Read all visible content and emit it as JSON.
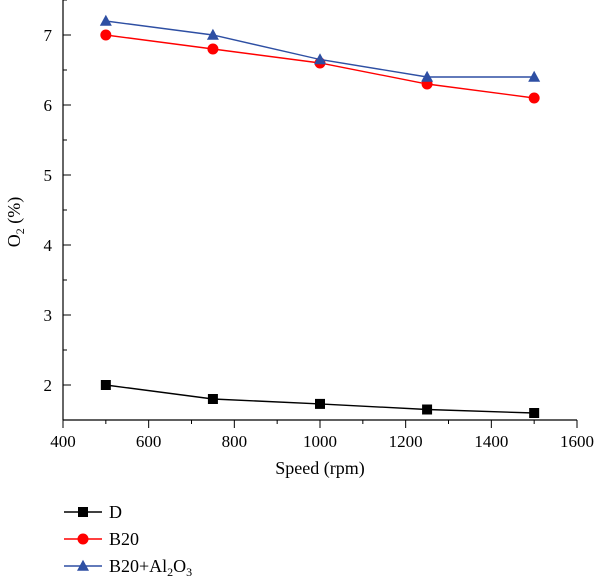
{
  "chart_data": {
    "type": "line",
    "title": "",
    "xlabel": "Speed (rpm)",
    "ylabel": {
      "main": "O",
      "sub": "2",
      "rest": " (%)"
    },
    "xlim": [
      400,
      1600
    ],
    "ylim": [
      1.5,
      7.5
    ],
    "xticks": [
      400,
      600,
      800,
      1000,
      1200,
      1400,
      1600
    ],
    "yticks": [
      2,
      3,
      4,
      5,
      6,
      7
    ],
    "x": [
      500,
      750,
      1000,
      1250,
      1500
    ],
    "grid": false,
    "legend_position": "bottom-left",
    "series": [
      {
        "name": "D",
        "label_parts": [
          {
            "t": "D",
            "sub": false
          }
        ],
        "values": [
          2.0,
          1.8,
          1.73,
          1.65,
          1.6
        ],
        "color": "#000000",
        "marker": "square"
      },
      {
        "name": "B20",
        "label_parts": [
          {
            "t": "B20",
            "sub": false
          }
        ],
        "values": [
          7.0,
          6.8,
          6.6,
          6.3,
          6.1
        ],
        "color": "#ff0000",
        "marker": "circle"
      },
      {
        "name": "B20+Al2O3",
        "label_parts": [
          {
            "t": "B20+Al",
            "sub": false
          },
          {
            "t": "2",
            "sub": true
          },
          {
            "t": "O",
            "sub": false
          },
          {
            "t": "3",
            "sub": true
          }
        ],
        "values": [
          7.2,
          7.0,
          6.65,
          6.4,
          6.4
        ],
        "color": "#2e4fa3",
        "marker": "triangle"
      }
    ]
  }
}
